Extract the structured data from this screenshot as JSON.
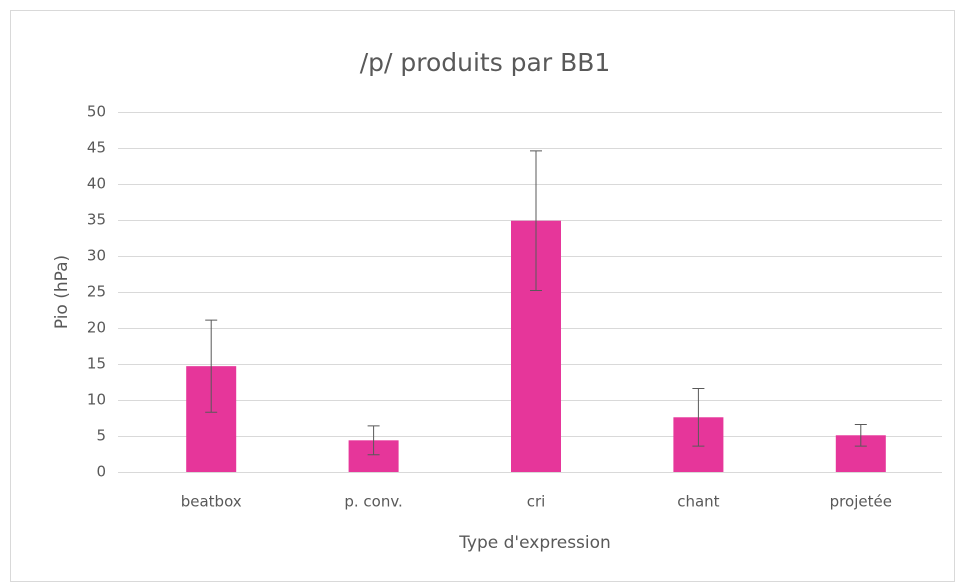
{
  "chart_data": {
    "type": "bar",
    "title": "/p/ produits par BB1",
    "xlabel": "Type d'expression",
    "ylabel": "Pio (hPa)",
    "categories": [
      "beatbox",
      "p. conv.",
      "cri",
      "chant",
      "projetée"
    ],
    "values": [
      14.7,
      4.4,
      34.9,
      7.6,
      5.1
    ],
    "errors": [
      6.4,
      2.0,
      9.7,
      4.0,
      1.5
    ],
    "color": "#e6369a",
    "ylim": [
      0,
      50
    ],
    "yticks": [
      0,
      5,
      10,
      15,
      20,
      25,
      30,
      35,
      40,
      45,
      50
    ],
    "grid": true
  }
}
